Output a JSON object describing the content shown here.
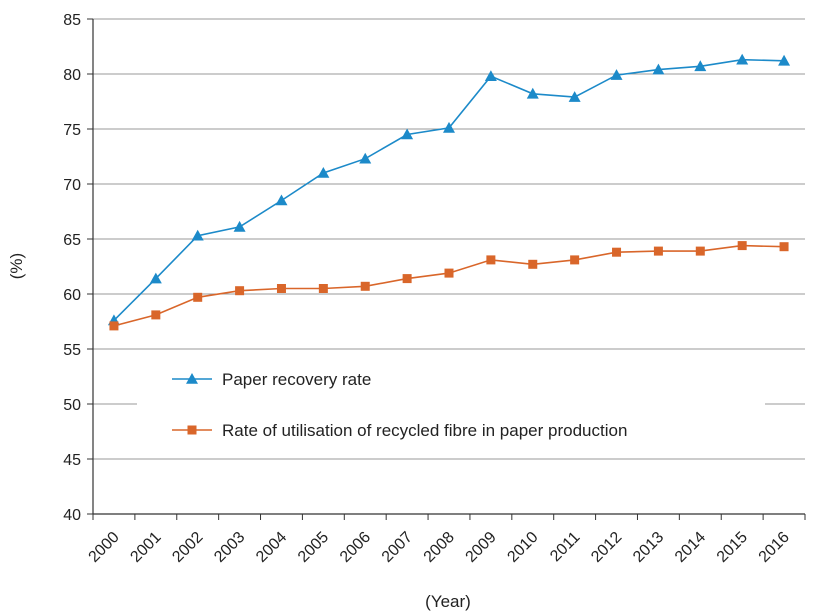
{
  "chart_data": {
    "type": "line",
    "xlabel": "(Year)",
    "ylabel": "(%)",
    "ylim": [
      40,
      85
    ],
    "yticks": [
      40,
      45,
      50,
      55,
      60,
      65,
      70,
      75,
      80,
      85
    ],
    "grid": "horizontal",
    "legend_position": "center-left",
    "x": [
      "2000",
      "2001",
      "2002",
      "2003",
      "2004",
      "2005",
      "2006",
      "2007",
      "2008",
      "2009",
      "2010",
      "2011",
      "2012",
      "2013",
      "2014",
      "2015",
      "2016"
    ],
    "series": [
      {
        "name": "Paper recovery rate",
        "color": "#1c8ac9",
        "marker": "triangle",
        "values": [
          57.6,
          61.4,
          65.3,
          66.1,
          68.5,
          71.0,
          72.3,
          74.5,
          75.1,
          79.8,
          78.2,
          77.9,
          79.9,
          80.4,
          80.7,
          81.3,
          81.2
        ]
      },
      {
        "name": "Rate of utilisation of recycled fibre in paper production",
        "color": "#d9662a",
        "marker": "square",
        "values": [
          57.1,
          58.1,
          59.7,
          60.3,
          60.5,
          60.5,
          60.7,
          61.4,
          61.9,
          63.1,
          62.7,
          63.1,
          63.8,
          63.9,
          63.9,
          64.4,
          64.3
        ]
      }
    ]
  }
}
